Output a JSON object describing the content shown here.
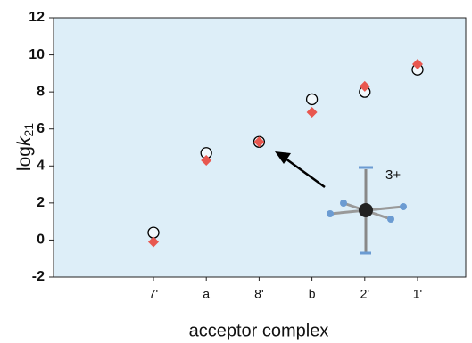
{
  "chart_data": {
    "type": "scatter",
    "ylabel": {
      "main": "log",
      "italic": "k",
      "sub": "21"
    },
    "xlabel": "acceptor complex",
    "categories": [
      "7'",
      "a",
      "8'",
      "b",
      "2'",
      "1'"
    ],
    "series": [
      {
        "marker": "circle",
        "color": "#000000",
        "values": [
          0.4,
          4.7,
          5.3,
          7.6,
          8.0,
          9.2
        ]
      },
      {
        "marker": "diamond",
        "color": "#e8574f",
        "values": [
          -0.1,
          4.3,
          5.3,
          6.9,
          8.3,
          9.5
        ]
      }
    ],
    "ylim": [
      -2,
      12
    ],
    "yticks": [
      -2,
      0,
      2,
      4,
      6,
      8,
      10,
      12
    ],
    "background": "#ddeef8",
    "annotation": "3+"
  }
}
